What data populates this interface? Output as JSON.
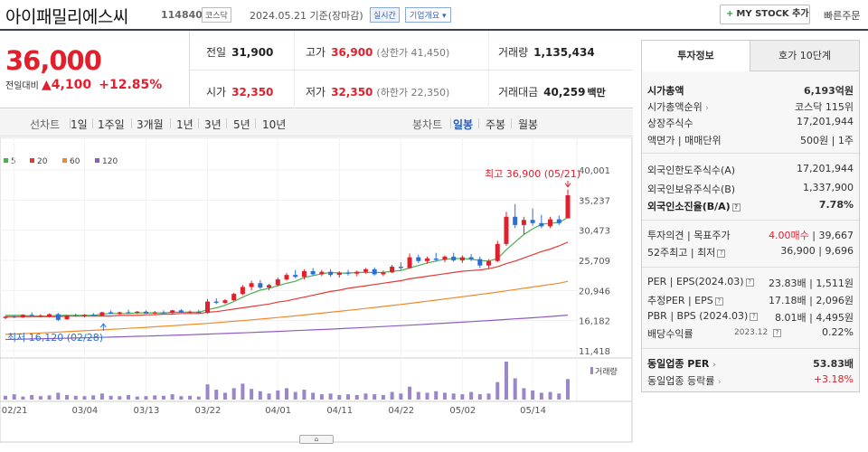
{
  "header": {
    "name": "아이패밀리에스씨",
    "code": "114840",
    "market": "코스닥",
    "date": "2024.05.21  기준(장마감)",
    "realtime": "실시간",
    "company_info": "기업개요",
    "mystock": "MY STOCK 추가",
    "quick_order": "빠른주문"
  },
  "summary": {
    "price": "36,000",
    "change_label": "전일대비",
    "change": "4,100",
    "change_pct": "+12.85%",
    "prev_close_label": "전일",
    "prev_close": "31,900",
    "high_label": "고가",
    "high": "36,900",
    "upper_limit": "(상한가 41,450)",
    "volume_label": "거래량",
    "volume": "1,135,434",
    "open_label": "시가",
    "open": "32,350",
    "low_label": "저가",
    "low": "32,350",
    "lower_limit": "(하한가 22,350)",
    "amount_label": "거래대금",
    "amount": "40,259",
    "amount_unit": "백만"
  },
  "period": {
    "line_chart": "선차트",
    "items": [
      "1일",
      "1주일",
      "3개월",
      "1년",
      "3년",
      "5년",
      "10년"
    ],
    "candle_chart": "봉차트",
    "candle_items": [
      "일봉",
      "주봉",
      "월봉"
    ]
  },
  "colors": {
    "up": "#e0202d",
    "down": "#2a6fd6",
    "ma5": "#4caf50",
    "ma20": "#e53935",
    "ma60": "#ef8a2a",
    "ma120": "#8e5bc4",
    "volume": "#9a86c8"
  },
  "chart_data": {
    "type": "candlestick",
    "legend": [
      "5",
      "20",
      "60",
      "120"
    ],
    "y_ticks": [
      "40,001",
      "35,237",
      "30,473",
      "25,709",
      "20,946",
      "16,182",
      "11,418"
    ],
    "y_range": [
      11418,
      40001
    ],
    "x_ticks": [
      "02/21",
      "03/04",
      "03/13",
      "03/22",
      "04/01",
      "04/11",
      "04/22",
      "05/02",
      "05/14"
    ],
    "x_tick_index": [
      1,
      9,
      16,
      23,
      31,
      38,
      45,
      52,
      60
    ],
    "high_label": "최고 36,900 (05/21)",
    "low_label": "최저 16,120 (02/28)",
    "volume_label": "거래량",
    "candles": [
      [
        16600,
        16900,
        16400,
        16800
      ],
      [
        16800,
        17000,
        16600,
        16700
      ],
      [
        16700,
        17200,
        16600,
        17100
      ],
      [
        17100,
        17500,
        16900,
        16900
      ],
      [
        16900,
        17200,
        16700,
        17000
      ],
      [
        16800,
        17300,
        16700,
        17200
      ],
      [
        17200,
        17400,
        16120,
        16300
      ],
      [
        16400,
        17100,
        16300,
        17000
      ],
      [
        17000,
        17300,
        16800,
        16900
      ],
      [
        16900,
        17200,
        16700,
        17100
      ],
      [
        17100,
        17400,
        16900,
        17000
      ],
      [
        17000,
        17600,
        16900,
        17500
      ],
      [
        17500,
        17800,
        17200,
        17300
      ],
      [
        17300,
        17600,
        17100,
        17500
      ],
      [
        17500,
        17900,
        17300,
        17400
      ],
      [
        17400,
        17700,
        17200,
        17600
      ],
      [
        17600,
        17800,
        17300,
        17300
      ],
      [
        17300,
        17700,
        17200,
        17500
      ],
      [
        17500,
        17800,
        17200,
        17400
      ],
      [
        17400,
        17900,
        17300,
        17800
      ],
      [
        17800,
        18000,
        17400,
        17500
      ],
      [
        17500,
        17800,
        17300,
        17600
      ],
      [
        17600,
        17900,
        17300,
        17400
      ],
      [
        17400,
        19600,
        17300,
        19200
      ],
      [
        19200,
        19700,
        18800,
        19000
      ],
      [
        19000,
        19600,
        18800,
        19400
      ],
      [
        19400,
        20600,
        19300,
        20400
      ],
      [
        20400,
        21800,
        20200,
        21500
      ],
      [
        21500,
        22500,
        21000,
        22100
      ],
      [
        22100,
        22600,
        21200,
        21400
      ],
      [
        21400,
        22000,
        21000,
        21800
      ],
      [
        21800,
        23000,
        21600,
        22700
      ],
      [
        22700,
        23700,
        22500,
        23400
      ],
      [
        23400,
        24200,
        22900,
        23100
      ],
      [
        23100,
        24300,
        22700,
        24000
      ],
      [
        24000,
        24500,
        23300,
        23500
      ],
      [
        23500,
        24200,
        23200,
        23900
      ],
      [
        23900,
        24300,
        23100,
        23400
      ],
      [
        23400,
        24000,
        23000,
        23800
      ],
      [
        23800,
        24200,
        23300,
        23600
      ],
      [
        23600,
        24100,
        23200,
        23900
      ],
      [
        23900,
        24500,
        23600,
        24300
      ],
      [
        24300,
        24600,
        23300,
        23500
      ],
      [
        23500,
        24100,
        23200,
        23800
      ],
      [
        23800,
        25000,
        23700,
        24700
      ],
      [
        24700,
        25400,
        24200,
        24500
      ],
      [
        24500,
        26800,
        24400,
        26200
      ],
      [
        26200,
        26600,
        25300,
        25600
      ],
      [
        25600,
        26300,
        25200,
        26000
      ],
      [
        26000,
        26900,
        25500,
        25800
      ],
      [
        25800,
        26500,
        25400,
        26300
      ],
      [
        26300,
        26900,
        25500,
        25700
      ],
      [
        25700,
        26500,
        25300,
        26200
      ],
      [
        26200,
        26700,
        25600,
        25900
      ],
      [
        25900,
        26300,
        24500,
        24900
      ],
      [
        24900,
        25900,
        24500,
        25600
      ],
      [
        25600,
        28800,
        25400,
        28300
      ],
      [
        28300,
        33400,
        28000,
        32600
      ],
      [
        32600,
        34600,
        30800,
        31300
      ],
      [
        31300,
        32600,
        29800,
        32100
      ],
      [
        32100,
        33900,
        31200,
        31600
      ],
      [
        31600,
        32900,
        30800,
        31100
      ],
      [
        31100,
        32600,
        30800,
        32200
      ],
      [
        32200,
        32800,
        31300,
        31600
      ],
      [
        32350,
        36900,
        32350,
        36000
      ]
    ],
    "ma5": [
      17000,
      17000,
      17000,
      16900,
      16900,
      16900,
      17000,
      17000,
      17000,
      17000,
      17000,
      17200,
      17300,
      17300,
      17300,
      17400,
      17400,
      17400,
      17400,
      17500,
      17500,
      17500,
      17500,
      17900,
      18200,
      18600,
      19200,
      19900,
      20500,
      21000,
      21300,
      21700,
      22100,
      22400,
      23000,
      23300,
      23600,
      23800,
      23700,
      23700,
      23800,
      23800,
      23800,
      23800,
      24000,
      24100,
      24500,
      24900,
      25300,
      25600,
      25900,
      26000,
      26000,
      25900,
      25700,
      25600,
      26000,
      27400,
      28600,
      29800,
      30700,
      31400,
      31600,
      31700,
      32500
    ],
    "ma20": [
      16800,
      16800,
      16800,
      16800,
      16800,
      16800,
      16800,
      16900,
      16900,
      16900,
      16900,
      16900,
      16900,
      17000,
      17000,
      17000,
      17100,
      17100,
      17200,
      17200,
      17300,
      17300,
      17300,
      17500,
      17600,
      17800,
      18000,
      18200,
      18400,
      18600,
      18800,
      19100,
      19300,
      19600,
      19900,
      20200,
      20500,
      20800,
      21000,
      21300,
      21500,
      21700,
      21900,
      22100,
      22300,
      22500,
      22800,
      23000,
      23200,
      23400,
      23600,
      23800,
      24000,
      24100,
      24200,
      24400,
      24700,
      25200,
      25600,
      26100,
      26600,
      27100,
      27500,
      28000,
      28600
    ],
    "ma60": [
      14000,
      14060,
      14120,
      14180,
      14240,
      14300,
      14370,
      14440,
      14510,
      14580,
      14650,
      14720,
      14800,
      14880,
      14960,
      15040,
      15120,
      15200,
      15290,
      15380,
      15470,
      15560,
      15650,
      15750,
      15850,
      15960,
      16070,
      16180,
      16300,
      16420,
      16550,
      16680,
      16810,
      16940,
      17080,
      17220,
      17360,
      17500,
      17650,
      17800,
      17950,
      18100,
      18260,
      18420,
      18580,
      18740,
      18910,
      19080,
      19250,
      19420,
      19600,
      19780,
      19960,
      20140,
      20320,
      20500,
      20700,
      20900,
      21100,
      21300,
      21500,
      21700,
      21900,
      22100,
      22400
    ],
    "ma120": [
      13200,
      13230,
      13260,
      13290,
      13320,
      13350,
      13380,
      13410,
      13440,
      13470,
      13500,
      13540,
      13580,
      13620,
      13660,
      13700,
      13740,
      13780,
      13820,
      13860,
      13900,
      13950,
      14000,
      14050,
      14100,
      14150,
      14200,
      14250,
      14300,
      14360,
      14420,
      14480,
      14540,
      14600,
      14660,
      14720,
      14780,
      14840,
      14900,
      14970,
      15040,
      15110,
      15180,
      15250,
      15320,
      15390,
      15460,
      15540,
      15620,
      15700,
      15780,
      15860,
      15940,
      16020,
      16100,
      16190,
      16280,
      16370,
      16460,
      16550,
      16640,
      16740,
      16840,
      16940,
      17050
    ],
    "volume": [
      10,
      14,
      8,
      12,
      9,
      11,
      18,
      12,
      10,
      9,
      11,
      16,
      10,
      9,
      12,
      8,
      9,
      11,
      10,
      14,
      9,
      10,
      8,
      40,
      26,
      18,
      30,
      42,
      28,
      22,
      16,
      24,
      30,
      20,
      26,
      18,
      14,
      16,
      12,
      14,
      12,
      16,
      14,
      12,
      20,
      16,
      34,
      20,
      18,
      22,
      18,
      16,
      14,
      20,
      14,
      16,
      46,
      100,
      56,
      30,
      24,
      18,
      20,
      16,
      54
    ]
  },
  "right_panel": {
    "tab_active": "투자정보",
    "tab_other": "호가 10단계",
    "market_cap_label": "시가총액",
    "market_cap": "6,193억원",
    "cap_rank_label": "시가총액순위",
    "cap_rank": "코스닥 115위",
    "shares_label": "상장주식수",
    "shares": "17,201,944",
    "par_label": "액면가",
    "trade_unit_label": "매매단위",
    "par_value": "500원",
    "trade_unit": "1주",
    "foreign_limit_label": "외국인한도주식수(A)",
    "foreign_limit": "17,201,944",
    "foreign_hold_label": "외국인보유주식수(B)",
    "foreign_hold": "1,337,900",
    "foreign_ratio_label": "외국인소진율(B/A)",
    "foreign_ratio": "7.78%",
    "opinion_label": "투자의견",
    "target_label": "목표주가",
    "opinion": "4.00매수",
    "target": "39,667",
    "w52_label": "52주최고",
    "w52_low_label": "최저",
    "w52_high": "36,900",
    "w52_low": "9,696",
    "per_label": "PER",
    "eps_label": "EPS(2024.03)",
    "per": "23.83배",
    "eps": "1,511원",
    "est_per_label": "추정PER",
    "est_eps_label": "EPS",
    "est_per": "17.18배",
    "est_eps": "2,096원",
    "pbr_label": "PBR",
    "bps_label": "BPS (2024.03)",
    "pbr": "8.01배",
    "bps": "4,495원",
    "div_label": "배당수익률",
    "div_date": "2023.12",
    "div": "0.22%",
    "industry_per_label": "동일업종 PER",
    "industry_per": "53.83배",
    "industry_chg_label": "동일업종 등락률",
    "industry_chg": "+3.18%"
  }
}
